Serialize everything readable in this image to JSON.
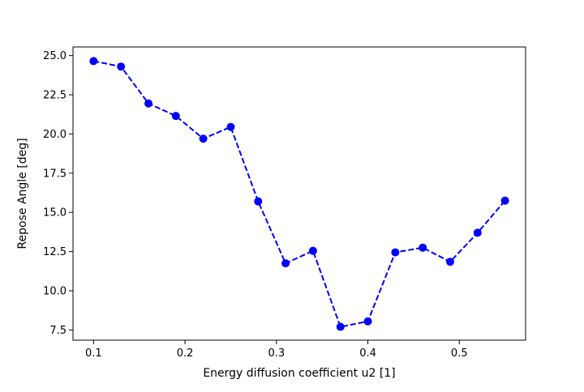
{
  "chart_data": {
    "type": "line",
    "title": "",
    "xlabel": "Energy diffusion coefficient u2 [1]",
    "ylabel": "Repose Angle [deg]",
    "xlim": [
      0.0775,
      0.5725
    ],
    "ylim": [
      6.85,
      25.55
    ],
    "x_ticks": [
      0.1,
      0.2,
      0.3,
      0.4,
      0.5
    ],
    "x_tick_labels": [
      "0.1",
      "0.2",
      "0.3",
      "0.4",
      "0.5"
    ],
    "y_ticks": [
      7.5,
      10.0,
      12.5,
      15.0,
      17.5,
      20.0,
      22.5,
      25.0
    ],
    "y_tick_labels": [
      "7.5",
      "10.0",
      "12.5",
      "15.0",
      "17.5",
      "20.0",
      "22.5",
      "25.0"
    ],
    "grid": false,
    "legend": "none",
    "series": [
      {
        "color": "#0000ff",
        "line_style": "dashed",
        "marker": "circle",
        "x": [
          0.1,
          0.13,
          0.16,
          0.19,
          0.22,
          0.25,
          0.28,
          0.31,
          0.34,
          0.37,
          0.4,
          0.43,
          0.46,
          0.49,
          0.52,
          0.55
        ],
        "y": [
          24.65,
          24.3,
          21.95,
          21.15,
          19.7,
          20.45,
          15.7,
          11.75,
          12.55,
          7.7,
          8.05,
          12.45,
          12.75,
          11.85,
          13.7,
          15.75
        ]
      }
    ]
  }
}
